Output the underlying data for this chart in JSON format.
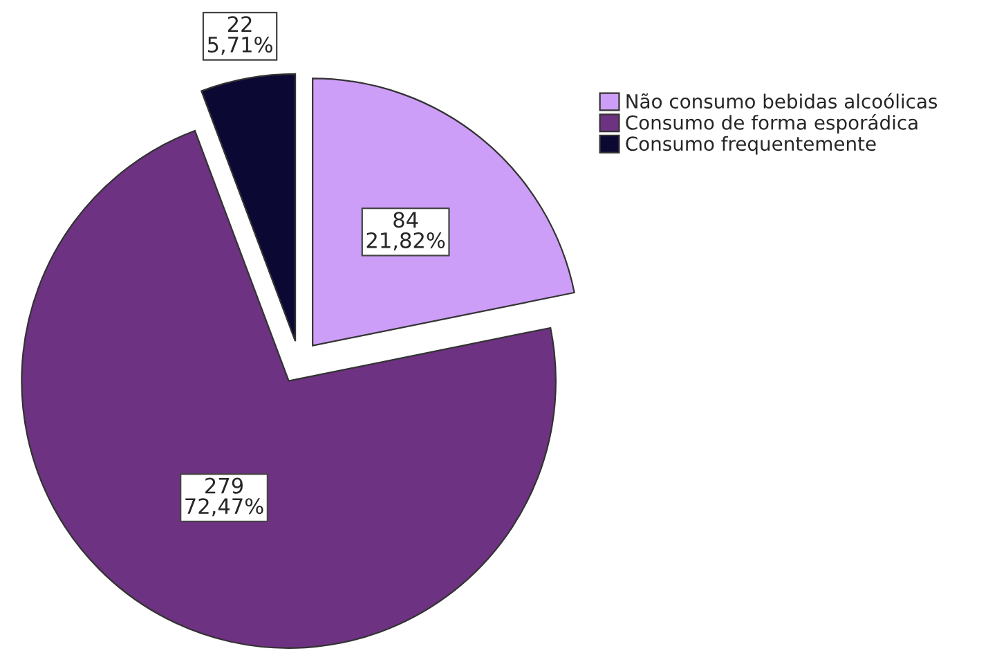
{
  "chart_data": {
    "type": "pie",
    "categories": [
      "Não consumo bebidas alcoólicas",
      "Consumo de forma esporádica",
      "Consumo frequentemente"
    ],
    "values": [
      84,
      279,
      22
    ],
    "colors": [
      "#cc9ef7",
      "#6e3282",
      "#0b0933"
    ],
    "value_labels": [
      "84\n21,82%",
      "279\n72,47%",
      "22\n5,71%"
    ],
    "legend": "top right"
  }
}
